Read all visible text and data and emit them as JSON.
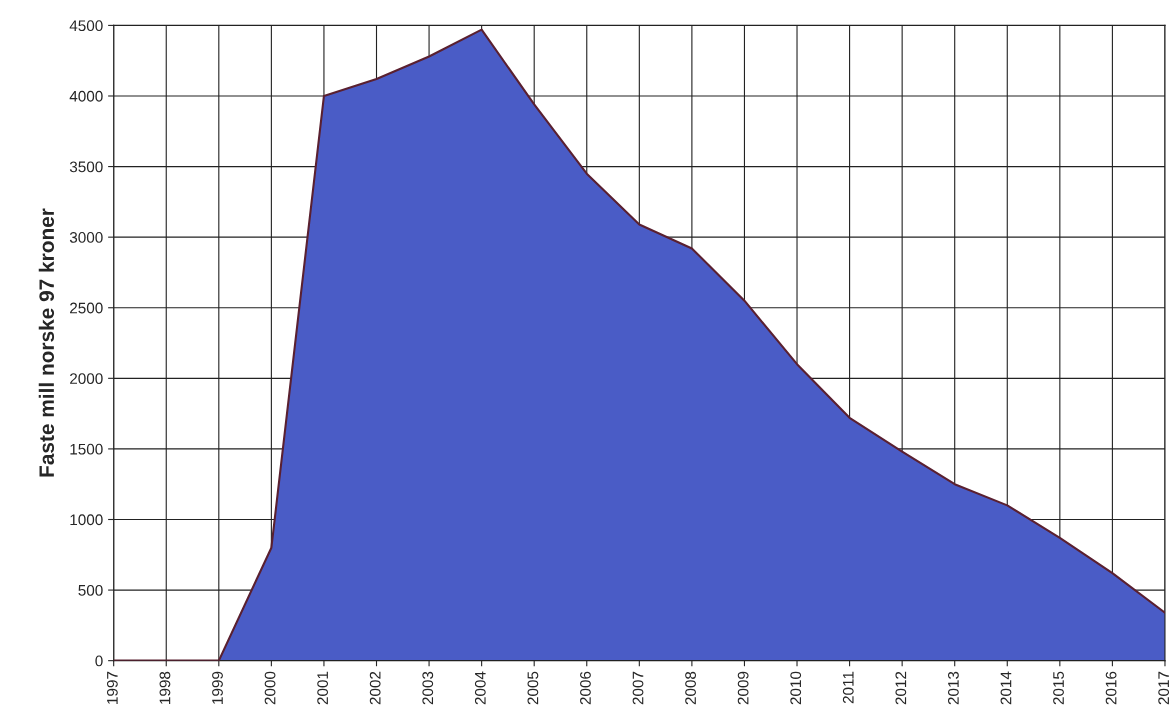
{
  "chart_data": {
    "type": "area",
    "ylabel": "Faste mill norske 97 kroner",
    "categories": [
      "1997",
      "1998",
      "1999",
      "2000",
      "2001",
      "2002",
      "2003",
      "2004",
      "2005",
      "2006",
      "2007",
      "2008",
      "2009",
      "2010",
      "2011",
      "2012",
      "2013",
      "2014",
      "2015",
      "2016",
      "2017"
    ],
    "series": [
      {
        "color": "#4a5cc6",
        "values": [
          0,
          0,
          0,
          800,
          4000,
          4120,
          4280,
          4470,
          3940,
          3450,
          3090,
          2920,
          2550,
          2100,
          1720,
          1480,
          1250,
          1100,
          870,
          620,
          340
        ]
      }
    ],
    "ylim": [
      0,
      4500
    ],
    "yticks": [
      0,
      500,
      1000,
      1500,
      2000,
      2500,
      3000,
      3500,
      4000,
      4500
    ],
    "grid": true
  }
}
